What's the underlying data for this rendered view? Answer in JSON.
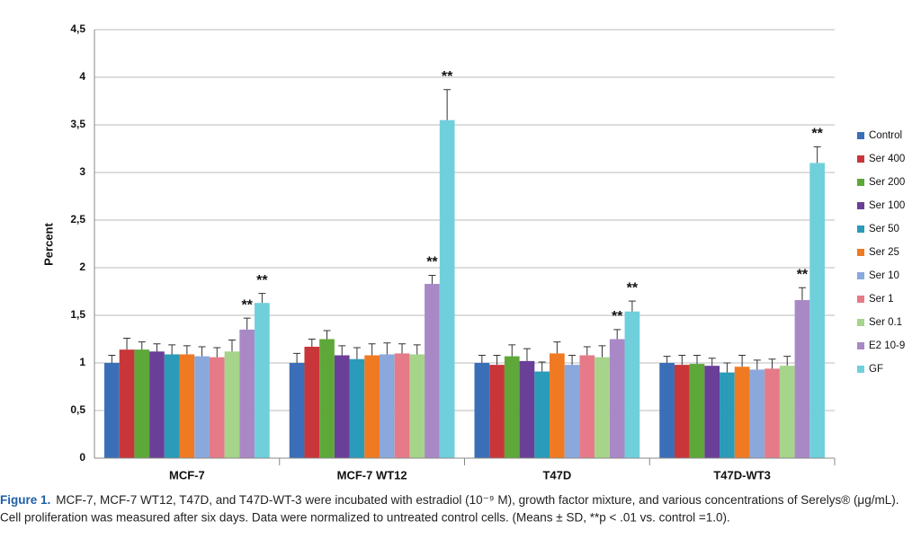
{
  "chart_data": {
    "type": "bar",
    "y_label": "Percent",
    "categories": [
      "MCF-7",
      "MCF-7 WT12",
      "T47D",
      "T47D-WT3"
    ],
    "ylim": [
      0,
      4.5
    ],
    "yticks": [
      0,
      {
        "value": 0.5,
        "label": "0,5"
      },
      1,
      {
        "value": 1.5,
        "label": "1,5"
      },
      2,
      {
        "value": 2.5,
        "label": "2,5"
      },
      3,
      {
        "value": 3.5,
        "label": "3,5"
      },
      4,
      {
        "value": 4.5,
        "label": "4,5"
      }
    ],
    "grid": true,
    "legend": "right",
    "series": [
      {
        "name": "Control",
        "color": "#3a6fb8",
        "values": [
          1.0,
          1.0,
          1.0,
          1.0
        ],
        "errors": [
          0.08,
          0.1,
          0.08,
          0.07
        ]
      },
      {
        "name": "Ser 400",
        "color": "#c8363a",
        "values": [
          1.14,
          1.17,
          0.98,
          0.98
        ],
        "errors": [
          0.12,
          0.08,
          0.1,
          0.1
        ]
      },
      {
        "name": "Ser 200",
        "color": "#5ea83a",
        "values": [
          1.14,
          1.25,
          1.07,
          0.99
        ],
        "errors": [
          0.08,
          0.09,
          0.12,
          0.09
        ]
      },
      {
        "name": "Ser 100",
        "color": "#6a3f98",
        "values": [
          1.12,
          1.08,
          1.02,
          0.97
        ],
        "errors": [
          0.08,
          0.1,
          0.13,
          0.08
        ]
      },
      {
        "name": "Ser 50",
        "color": "#2a9bb8",
        "values": [
          1.09,
          1.04,
          0.91,
          0.9
        ],
        "errors": [
          0.1,
          0.12,
          0.1,
          0.1
        ]
      },
      {
        "name": "Ser 25",
        "color": "#f07a22",
        "values": [
          1.09,
          1.08,
          1.1,
          0.96
        ],
        "errors": [
          0.09,
          0.12,
          0.12,
          0.12
        ]
      },
      {
        "name": "Ser 10",
        "color": "#8aa8dc",
        "values": [
          1.07,
          1.09,
          0.98,
          0.93
        ],
        "errors": [
          0.1,
          0.12,
          0.1,
          0.1
        ]
      },
      {
        "name": "Ser 1",
        "color": "#e67a88",
        "values": [
          1.06,
          1.1,
          1.08,
          0.94
        ],
        "errors": [
          0.1,
          0.1,
          0.09,
          0.1
        ]
      },
      {
        "name": "Ser 0.1",
        "color": "#a6d48a",
        "values": [
          1.12,
          1.09,
          1.06,
          0.97
        ],
        "errors": [
          0.12,
          0.1,
          0.12,
          0.1
        ]
      },
      {
        "name": "E2 10-9",
        "color": "#a889c6",
        "values": [
          1.35,
          1.83,
          1.25,
          1.66
        ],
        "errors": [
          0.12,
          0.09,
          0.1,
          0.13
        ],
        "annotations": [
          "**",
          "**",
          "**",
          "**"
        ]
      },
      {
        "name": "GF",
        "color": "#6fd0dc",
        "values": [
          1.63,
          3.55,
          1.54,
          3.1
        ],
        "errors": [
          0.1,
          0.32,
          0.11,
          0.17
        ],
        "annotations": [
          "**",
          "**",
          "**",
          "**"
        ]
      }
    ]
  },
  "caption": {
    "label": "Figure 1.",
    "lines": [
      "MCF-7, MCF-7 WT12, T47D, and T47D-WT-3 were incubated with estradiol (10⁻⁹ M), growth factor mixture, and various concentrations of Serelys® (μg/mL).",
      "Cell proliferation was measured after six days. Data were normalized to untreated control cells. (Means ± SD, **p < .01 vs. control =1.0)."
    ]
  }
}
